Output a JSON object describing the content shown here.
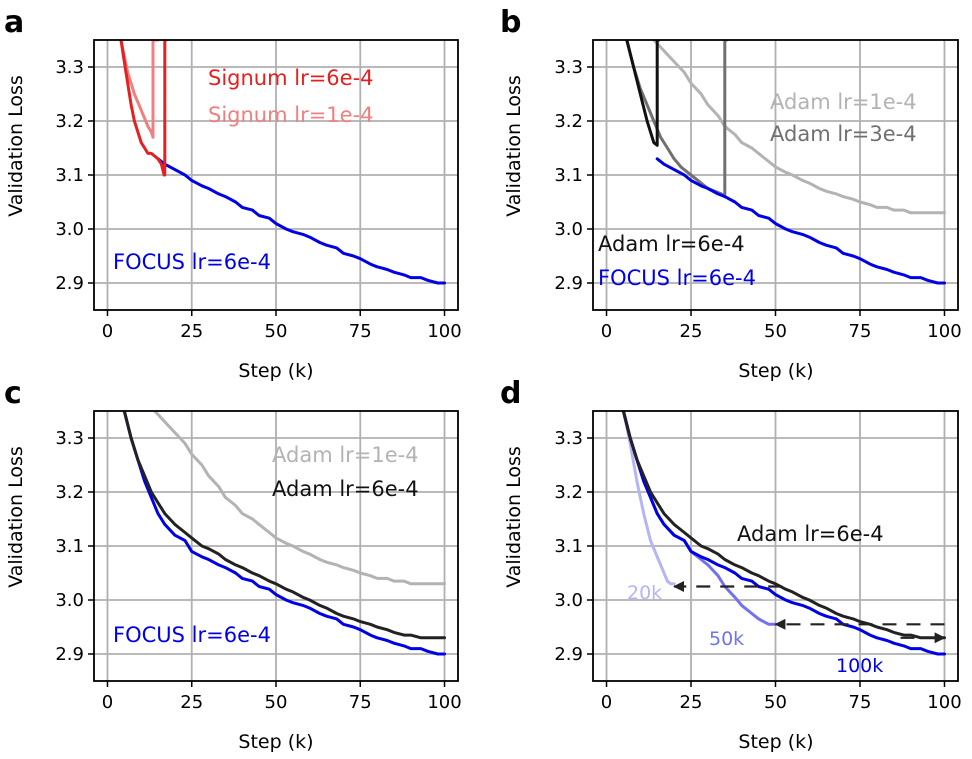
{
  "chart_data": [
    {
      "panel": "a",
      "type": "line",
      "xlabel": "Step (k)",
      "ylabel": "Validation Loss",
      "xlim": [
        -4,
        104
      ],
      "ylim": [
        2.85,
        3.35
      ],
      "xticks": [
        0,
        25,
        50,
        75,
        100
      ],
      "yticks": [
        2.9,
        3.0,
        3.1,
        3.2,
        3.3
      ],
      "grid": true,
      "series": [
        {
          "name": "FOCUS lr=6e-4",
          "color": "#0000e6",
          "width": 3,
          "x": [
            15,
            17,
            20,
            23,
            25,
            28,
            30,
            33,
            35,
            38,
            40,
            43,
            45,
            48,
            50,
            53,
            55,
            58,
            60,
            63,
            65,
            68,
            70,
            73,
            75,
            78,
            80,
            83,
            85,
            88,
            90,
            93,
            95,
            98,
            100
          ],
          "y": [
            3.13,
            3.12,
            3.11,
            3.1,
            3.09,
            3.08,
            3.075,
            3.065,
            3.06,
            3.05,
            3.04,
            3.035,
            3.025,
            3.02,
            3.01,
            3.0,
            2.995,
            2.99,
            2.985,
            2.975,
            2.97,
            2.965,
            2.955,
            2.95,
            2.945,
            2.935,
            2.93,
            2.925,
            2.92,
            2.915,
            2.91,
            2.91,
            2.905,
            2.9,
            2.9
          ]
        },
        {
          "name": "Signum lr=1e-4",
          "color": "#f08080",
          "width": 3,
          "x": [
            4,
            5,
            6,
            7,
            8,
            9,
            10,
            11,
            12,
            13,
            13.5,
            13.5,
            14,
            14.5,
            15
          ],
          "y": [
            3.35,
            3.32,
            3.29,
            3.27,
            3.25,
            3.235,
            3.22,
            3.205,
            3.19,
            3.18,
            3.17,
            3.35,
            3.35,
            3.35,
            3.35
          ]
        },
        {
          "name": "Signum lr=6e-4",
          "color": "#e62020",
          "width": 3,
          "x": [
            4,
            5,
            6,
            7,
            8,
            9,
            10,
            11,
            12,
            13,
            14,
            15,
            16,
            16.8,
            17,
            17,
            17.3
          ],
          "y": [
            3.35,
            3.31,
            3.27,
            3.23,
            3.2,
            3.18,
            3.16,
            3.15,
            3.14,
            3.14,
            3.135,
            3.13,
            3.12,
            3.1,
            3.1,
            3.35,
            3.35
          ]
        }
      ],
      "annotations": [
        {
          "text": "Signum lr=6e-4",
          "color": "#e62020"
        },
        {
          "text": "Signum lr=1e-4",
          "color": "#f08080"
        },
        {
          "text": "FOCUS lr=6e-4",
          "color": "#0000e6"
        }
      ]
    },
    {
      "panel": "b",
      "type": "line",
      "xlabel": "Step (k)",
      "ylabel": "Validation Loss",
      "xlim": [
        -4,
        104
      ],
      "ylim": [
        2.85,
        3.35
      ],
      "xticks": [
        0,
        25,
        50,
        75,
        100
      ],
      "yticks": [
        2.9,
        3.0,
        3.1,
        3.2,
        3.3
      ],
      "grid": true,
      "series": [
        {
          "name": "Adam lr=1e-4",
          "color": "#b3b3b3",
          "width": 3,
          "x": [
            14,
            17,
            20,
            23,
            25,
            28,
            30,
            33,
            35,
            38,
            40,
            43,
            45,
            48,
            50,
            53,
            55,
            58,
            60,
            63,
            65,
            68,
            70,
            73,
            75,
            78,
            80,
            83,
            85,
            88,
            90,
            93,
            95,
            98,
            100
          ],
          "y": [
            3.35,
            3.33,
            3.31,
            3.29,
            3.27,
            3.25,
            3.23,
            3.21,
            3.19,
            3.175,
            3.16,
            3.15,
            3.14,
            3.125,
            3.115,
            3.105,
            3.1,
            3.09,
            3.085,
            3.075,
            3.07,
            3.065,
            3.06,
            3.055,
            3.05,
            3.045,
            3.04,
            3.04,
            3.035,
            3.035,
            3.03,
            3.03,
            3.03,
            3.03,
            3.03
          ]
        },
        {
          "name": "Adam lr=3e-4",
          "color": "#707070",
          "width": 3,
          "x": [
            6,
            8,
            10,
            12,
            14,
            16,
            18,
            20,
            22,
            24,
            26,
            28,
            30,
            32,
            34,
            35,
            35,
            35.5
          ],
          "y": [
            3.35,
            3.3,
            3.26,
            3.23,
            3.2,
            3.17,
            3.15,
            3.13,
            3.115,
            3.105,
            3.095,
            3.085,
            3.075,
            3.07,
            3.065,
            3.06,
            3.35,
            3.35
          ]
        },
        {
          "name": "FOCUS lr=6e-4",
          "color": "#0000e6",
          "width": 3,
          "x": [
            15,
            17,
            20,
            23,
            25,
            28,
            30,
            33,
            35,
            38,
            40,
            43,
            45,
            48,
            50,
            53,
            55,
            58,
            60,
            63,
            65,
            68,
            70,
            73,
            75,
            78,
            80,
            83,
            85,
            88,
            90,
            93,
            95,
            98,
            100
          ],
          "y": [
            3.13,
            3.12,
            3.11,
            3.1,
            3.09,
            3.08,
            3.075,
            3.065,
            3.06,
            3.05,
            3.04,
            3.035,
            3.025,
            3.02,
            3.01,
            3.0,
            2.995,
            2.99,
            2.985,
            2.975,
            2.97,
            2.965,
            2.955,
            2.95,
            2.945,
            2.935,
            2.93,
            2.925,
            2.92,
            2.915,
            2.91,
            2.91,
            2.905,
            2.9,
            2.9
          ]
        },
        {
          "name": "Adam lr=6e-4",
          "color": "#111111",
          "width": 3,
          "x": [
            6,
            8,
            10,
            12,
            14,
            15,
            15,
            15.5
          ],
          "y": [
            3.35,
            3.3,
            3.25,
            3.2,
            3.16,
            3.155,
            3.35,
            3.35
          ]
        }
      ],
      "annotations": [
        {
          "text": "Adam lr=1e-4",
          "color": "#b3b3b3"
        },
        {
          "text": "Adam lr=3e-4",
          "color": "#707070"
        },
        {
          "text": "Adam lr=6e-4",
          "color": "#111111"
        },
        {
          "text": "FOCUS lr=6e-4",
          "color": "#0000e6"
        }
      ]
    },
    {
      "panel": "c",
      "type": "line",
      "xlabel": "Step (k)",
      "ylabel": "Validation Loss",
      "xlim": [
        -4,
        104
      ],
      "ylim": [
        2.85,
        3.35
      ],
      "xticks": [
        0,
        25,
        50,
        75,
        100
      ],
      "yticks": [
        2.9,
        3.0,
        3.1,
        3.2,
        3.3
      ],
      "grid": true,
      "series": [
        {
          "name": "Adam lr=1e-4",
          "color": "#b3b3b3",
          "width": 3,
          "x": [
            14,
            17,
            20,
            23,
            25,
            28,
            30,
            33,
            35,
            38,
            40,
            43,
            45,
            48,
            50,
            53,
            55,
            58,
            60,
            63,
            65,
            68,
            70,
            73,
            75,
            78,
            80,
            83,
            85,
            88,
            90,
            93,
            95,
            98,
            100
          ],
          "y": [
            3.35,
            3.33,
            3.31,
            3.29,
            3.27,
            3.25,
            3.23,
            3.21,
            3.19,
            3.175,
            3.16,
            3.15,
            3.14,
            3.125,
            3.115,
            3.105,
            3.1,
            3.09,
            3.085,
            3.075,
            3.07,
            3.065,
            3.06,
            3.055,
            3.05,
            3.045,
            3.04,
            3.04,
            3.035,
            3.035,
            3.03,
            3.03,
            3.03,
            3.03,
            3.03
          ]
        },
        {
          "name": "FOCUS lr=6e-4",
          "color": "#0000e6",
          "width": 3,
          "x": [
            5,
            7,
            9,
            11,
            13,
            15,
            17,
            20,
            23,
            25,
            28,
            30,
            33,
            35,
            38,
            40,
            43,
            45,
            48,
            50,
            53,
            55,
            58,
            60,
            63,
            65,
            68,
            70,
            73,
            75,
            78,
            80,
            83,
            85,
            88,
            90,
            93,
            95,
            98,
            100
          ],
          "y": [
            3.35,
            3.3,
            3.26,
            3.22,
            3.19,
            3.16,
            3.14,
            3.12,
            3.11,
            3.09,
            3.08,
            3.075,
            3.065,
            3.06,
            3.05,
            3.04,
            3.035,
            3.025,
            3.02,
            3.01,
            3.0,
            2.995,
            2.99,
            2.985,
            2.975,
            2.97,
            2.965,
            2.955,
            2.95,
            2.945,
            2.935,
            2.93,
            2.925,
            2.92,
            2.915,
            2.91,
            2.91,
            2.905,
            2.9,
            2.9
          ]
        },
        {
          "name": "Adam lr=6e-4",
          "color": "#222222",
          "width": 3,
          "x": [
            5,
            7,
            9,
            11,
            13,
            15,
            17,
            20,
            23,
            25,
            28,
            30,
            33,
            35,
            38,
            40,
            43,
            45,
            48,
            50,
            53,
            55,
            58,
            60,
            63,
            65,
            68,
            70,
            73,
            75,
            78,
            80,
            83,
            85,
            88,
            90,
            93,
            95,
            98,
            100
          ],
          "y": [
            3.35,
            3.3,
            3.26,
            3.23,
            3.2,
            3.18,
            3.16,
            3.14,
            3.125,
            3.115,
            3.1,
            3.095,
            3.085,
            3.075,
            3.065,
            3.06,
            3.05,
            3.045,
            3.035,
            3.03,
            3.02,
            3.015,
            3.005,
            3.0,
            2.99,
            2.985,
            2.975,
            2.97,
            2.965,
            2.96,
            2.955,
            2.95,
            2.945,
            2.94,
            2.935,
            2.935,
            2.93,
            2.93,
            2.93,
            2.93
          ]
        }
      ],
      "annotations": [
        {
          "text": "Adam lr=1e-4",
          "color": "#b3b3b3"
        },
        {
          "text": "Adam lr=6e-4",
          "color": "#111111"
        },
        {
          "text": "FOCUS lr=6e-4",
          "color": "#0000e6"
        }
      ]
    },
    {
      "panel": "d",
      "type": "line",
      "xlabel": "Step (k)",
      "ylabel": "Validation Loss",
      "xlim": [
        -4,
        104
      ],
      "ylim": [
        2.85,
        3.35
      ],
      "xticks": [
        0,
        25,
        50,
        75,
        100
      ],
      "yticks": [
        2.9,
        3.0,
        3.1,
        3.2,
        3.3
      ],
      "grid": true,
      "series": [
        {
          "name": "FOCUS 20k",
          "color": "#b4b4f8",
          "width": 3,
          "x": [
            5,
            7,
            9,
            11,
            13,
            15,
            17,
            18,
            19,
            20
          ],
          "y": [
            3.35,
            3.29,
            3.22,
            3.16,
            3.11,
            3.08,
            3.05,
            3.035,
            3.03,
            3.03
          ]
        },
        {
          "name": "FOCUS 50k",
          "color": "#7272f0",
          "width": 3,
          "x": [
            5,
            7,
            9,
            11,
            13,
            15,
            17,
            20,
            23,
            25,
            28,
            30,
            33,
            35,
            38,
            40,
            43,
            45,
            48,
            50
          ],
          "y": [
            3.35,
            3.3,
            3.26,
            3.22,
            3.19,
            3.16,
            3.14,
            3.12,
            3.11,
            3.09,
            3.075,
            3.065,
            3.045,
            3.025,
            3.005,
            2.99,
            2.975,
            2.965,
            2.955,
            2.955
          ]
        },
        {
          "name": "FOCUS 100k",
          "color": "#0000e6",
          "width": 3,
          "x": [
            5,
            7,
            9,
            11,
            13,
            15,
            17,
            20,
            23,
            25,
            28,
            30,
            33,
            35,
            38,
            40,
            43,
            45,
            48,
            50,
            53,
            55,
            58,
            60,
            63,
            65,
            68,
            70,
            73,
            75,
            78,
            80,
            83,
            85,
            88,
            90,
            93,
            95,
            98,
            100
          ],
          "y": [
            3.35,
            3.3,
            3.26,
            3.22,
            3.19,
            3.16,
            3.14,
            3.12,
            3.11,
            3.09,
            3.08,
            3.075,
            3.065,
            3.06,
            3.05,
            3.04,
            3.035,
            3.025,
            3.02,
            3.01,
            3.0,
            2.995,
            2.99,
            2.985,
            2.975,
            2.97,
            2.965,
            2.955,
            2.95,
            2.945,
            2.935,
            2.93,
            2.925,
            2.92,
            2.915,
            2.91,
            2.91,
            2.905,
            2.9,
            2.9
          ]
        },
        {
          "name": "Adam lr=6e-4",
          "color": "#222222",
          "width": 3,
          "x": [
            5,
            7,
            9,
            11,
            13,
            15,
            17,
            20,
            23,
            25,
            28,
            30,
            33,
            35,
            38,
            40,
            43,
            45,
            48,
            50,
            53,
            55,
            58,
            60,
            63,
            65,
            68,
            70,
            73,
            75,
            78,
            80,
            83,
            85,
            88,
            90,
            93,
            95,
            98,
            100
          ],
          "y": [
            3.35,
            3.3,
            3.26,
            3.23,
            3.2,
            3.18,
            3.16,
            3.14,
            3.125,
            3.115,
            3.1,
            3.095,
            3.085,
            3.075,
            3.065,
            3.06,
            3.05,
            3.045,
            3.035,
            3.03,
            3.02,
            3.015,
            3.005,
            3.0,
            2.99,
            2.985,
            2.975,
            2.97,
            2.965,
            2.96,
            2.955,
            2.95,
            2.945,
            2.94,
            2.935,
            2.935,
            2.93,
            2.93,
            2.93,
            2.93
          ]
        }
      ],
      "arrows": [
        {
          "from_x": 52,
          "to_x": 20,
          "y": 3.025,
          "color": "#222222"
        },
        {
          "from_x": 100,
          "to_x": 50,
          "y": 2.955,
          "color": "#222222"
        },
        {
          "from_x": 87,
          "to_x": 100,
          "y": 2.93,
          "color": "#222222"
        }
      ],
      "annotations": [
        {
          "text": "Adam lr=6e-4",
          "color": "#111111"
        },
        {
          "text": "20k",
          "color": "#b4b4f8"
        },
        {
          "text": "50k",
          "color": "#7272f0"
        },
        {
          "text": "100k",
          "color": "#0000e6"
        }
      ]
    }
  ]
}
